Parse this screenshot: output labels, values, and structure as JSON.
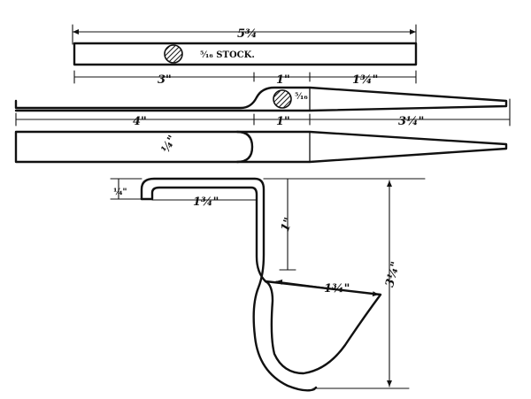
{
  "labels": {
    "stock_length": "5¾",
    "stock_size": "⁵⁄₁₆ STOCK.",
    "stock_section": "",
    "seg_a": "3\"",
    "seg_b": "1\"",
    "seg_c": "1¾\"",
    "section_size": "⁵⁄₁₆",
    "seg_d": "4\"",
    "seg_e": "1\"",
    "seg_f": "3¼\"",
    "thickness": "¼\"",
    "hook_height": "¼\"",
    "hook_top": "1¾\"",
    "drop": "1\"",
    "blade": "1¾\"",
    "overall_height": "3¼\""
  }
}
